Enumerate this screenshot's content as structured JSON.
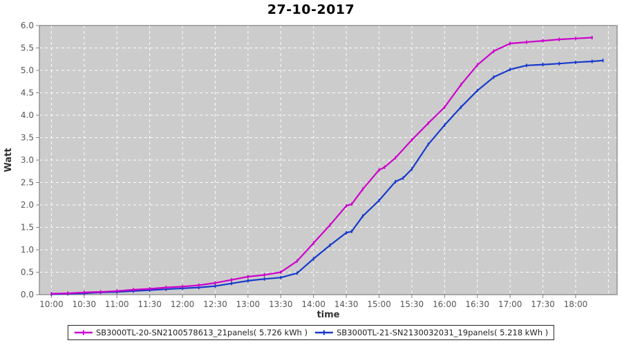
{
  "title": "27-10-2017",
  "chart_data": {
    "type": "line",
    "title": "27-10-2017",
    "xlabel": "time",
    "ylabel": "Watt",
    "ylim": [
      0.0,
      6.0
    ],
    "ytick_step": 0.5,
    "y_ticks": [
      "0.0",
      "0.5",
      "1.0",
      "1.5",
      "2.0",
      "2.5",
      "3.0",
      "3.5",
      "4.0",
      "4.5",
      "5.0",
      "5.5",
      "6.0"
    ],
    "x_ticks": [
      "10:00",
      "10:30",
      "11:00",
      "11:30",
      "12:00",
      "12:30",
      "13:00",
      "13:30",
      "14:00",
      "14:30",
      "15:00",
      "15:30",
      "16:00",
      "16:30",
      "17:00",
      "17:30",
      "18:00"
    ],
    "grid": true,
    "gridline_style": "dashed",
    "legend_position": "bottom",
    "colors": {
      "plot_background": "#cccccc",
      "gridline": "#ffffff",
      "plot_border": "#808080",
      "tick_label": "#555555",
      "axis_label": "#333333",
      "title": "#000000",
      "legend_border": "#222222",
      "legend_background": "#ffffff",
      "legend_text": "#222222",
      "series_magenta": "#cc00cc",
      "series_blue": "#1638cc"
    },
    "series": [
      {
        "name": "SB3000TL-20-SN2100578613_21panels( 5.726 kWh )",
        "total_kwh": "5.726",
        "color": "#cc00cc",
        "x": [
          "10:00",
          "10:15",
          "10:30",
          "10:45",
          "11:00",
          "11:15",
          "11:30",
          "11:45",
          "12:00",
          "12:15",
          "12:30",
          "12:45",
          "13:00",
          "13:15",
          "13:30",
          "13:45",
          "14:00",
          "14:15",
          "14:30",
          "14:35",
          "14:45",
          "15:00",
          "15:05",
          "15:15",
          "15:30",
          "15:45",
          "16:00",
          "16:15",
          "16:30",
          "16:45",
          "17:00",
          "17:15",
          "17:30",
          "17:45",
          "18:00",
          "18:15"
        ],
        "y": [
          0.02,
          0.03,
          0.05,
          0.06,
          0.08,
          0.11,
          0.13,
          0.16,
          0.18,
          0.21,
          0.26,
          0.33,
          0.4,
          0.44,
          0.5,
          0.75,
          1.15,
          1.55,
          1.98,
          2.02,
          2.35,
          2.78,
          2.84,
          3.05,
          3.45,
          3.82,
          4.18,
          4.68,
          5.12,
          5.43,
          5.6,
          5.63,
          5.66,
          5.69,
          5.71,
          5.73
        ]
      },
      {
        "name": "SB3000TL-21-SN2130032031_19panels( 5.218 kWh )",
        "total_kwh": "5.218",
        "color": "#1638cc",
        "x": [
          "10:00",
          "10:15",
          "10:30",
          "10:45",
          "11:00",
          "11:15",
          "11:30",
          "11:45",
          "12:00",
          "12:15",
          "12:30",
          "12:45",
          "13:00",
          "13:15",
          "13:30",
          "13:45",
          "14:00",
          "14:15",
          "14:30",
          "14:35",
          "14:45",
          "15:00",
          "15:15",
          "15:22",
          "15:30",
          "15:45",
          "16:00",
          "16:15",
          "16:30",
          "16:45",
          "17:00",
          "17:15",
          "17:30",
          "17:45",
          "18:00",
          "18:15",
          "18:25"
        ],
        "y": [
          0.01,
          0.02,
          0.03,
          0.05,
          0.06,
          0.08,
          0.1,
          0.12,
          0.14,
          0.16,
          0.19,
          0.25,
          0.31,
          0.35,
          0.38,
          0.48,
          0.8,
          1.1,
          1.38,
          1.41,
          1.75,
          2.1,
          2.52,
          2.6,
          2.8,
          3.35,
          3.78,
          4.18,
          4.55,
          4.85,
          5.02,
          5.11,
          5.13,
          5.15,
          5.18,
          5.2,
          5.22
        ]
      }
    ]
  }
}
